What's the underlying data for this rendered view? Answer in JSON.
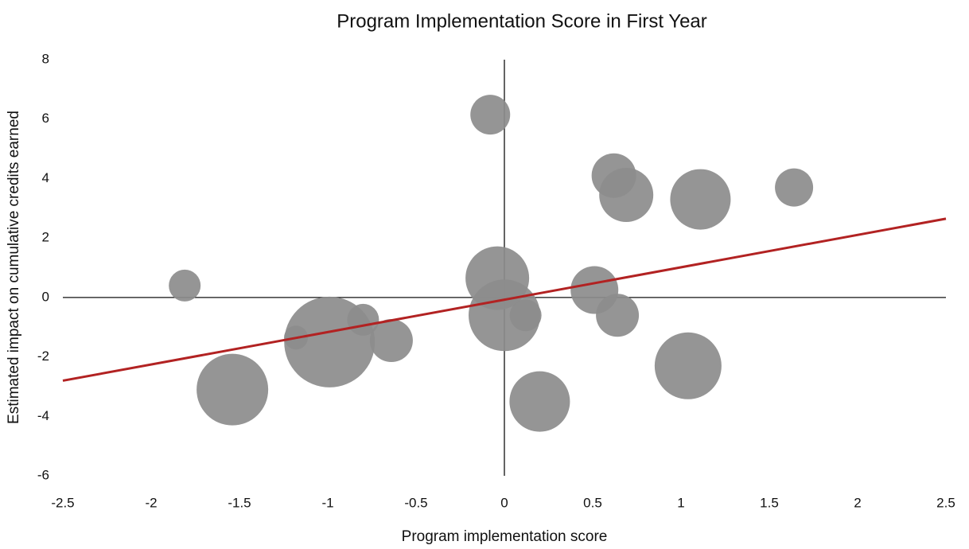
{
  "chart_data": {
    "type": "scatter",
    "title": "Program Implementation Score in First Year",
    "x_label": "Program implementation score",
    "y_label": "Estimated impact on cumulative credits earned",
    "x": [
      -1.81,
      -1.54,
      -1.18,
      -0.99,
      -0.8,
      -0.64,
      -0.08,
      -0.04,
      0.0,
      0.12,
      0.2,
      0.51,
      0.64,
      0.62,
      0.69,
      1.04,
      1.11,
      1.64
    ],
    "series": [
      {
        "color": "#8c8c8c",
        "values": [
          0.4,
          -3.1,
          -1.35,
          -1.5,
          -0.75,
          -1.45,
          6.15,
          0.65,
          -0.6,
          -0.6,
          -3.5,
          0.25,
          -0.6,
          4.1,
          3.45,
          -2.3,
          3.3,
          3.7
        ],
        "sizes": [
          20,
          45,
          15,
          57,
          20,
          27,
          25,
          40,
          45,
          20,
          38,
          30,
          27,
          28,
          34,
          42,
          38,
          24
        ]
      }
    ],
    "trendline": {
      "color": "#b22222",
      "x": [
        -2.5,
        2.5
      ],
      "values": [
        -2.8,
        2.65
      ]
    },
    "xlim": [
      -2.5,
      2.5
    ],
    "xticks": [
      -2.5,
      -2,
      -1.5,
      -1,
      -0.5,
      0,
      0.5,
      1,
      1.5,
      2,
      2.5
    ],
    "ylim": [
      -6,
      8
    ],
    "yticks": [
      -6,
      -4,
      -2,
      0,
      2,
      4,
      6,
      8
    ]
  }
}
